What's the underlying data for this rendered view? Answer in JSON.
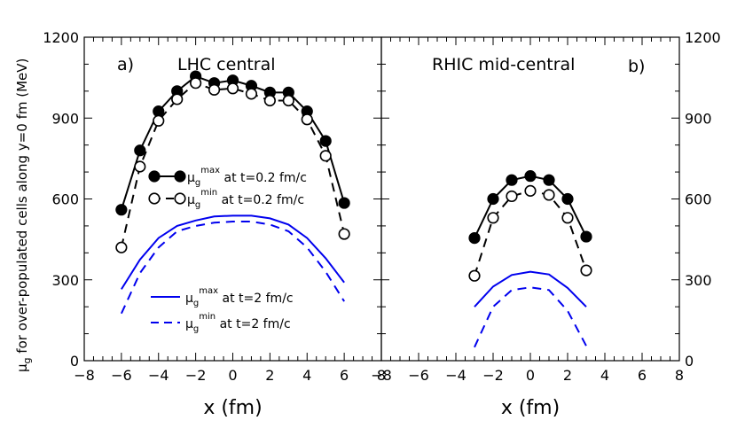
{
  "chart_data": {
    "type": "line",
    "ylabel_prefix": "μ",
    "ylabel_sub": "g",
    "ylabel_rest": " for over-populated cells along y=0 fm (MeV)",
    "ylim": [
      0,
      1200
    ],
    "yticks": [
      0,
      300,
      600,
      900,
      1200
    ],
    "xticks": [
      -8,
      -6,
      -4,
      -2,
      0,
      2,
      4,
      6,
      8
    ],
    "legend": [
      {
        "series": "LHC max t=0.2",
        "mu": "μ",
        "sub": "g",
        "sup": "max",
        "text": "at t=0.2 fm/c"
      },
      {
        "series": "LHC min t=0.2",
        "mu": "μ",
        "sub": "g",
        "sup": "min",
        "text": "at t=0.2 fm/c"
      },
      {
        "series": "LHC max t=2",
        "mu": "μ",
        "sub": "g",
        "sup": "max",
        "text": "at t=2 fm/c"
      },
      {
        "series": "LHC min t=2",
        "mu": "μ",
        "sub": "g",
        "sup": "min",
        "text": "at t=2 fm/c"
      }
    ],
    "panels": [
      {
        "id": "left",
        "tag": "a)",
        "title": "LHC central",
        "xlabel": "x (fm)",
        "xlim": [
          -8,
          8
        ],
        "series": [
          {
            "name": "LHC max t=0.2",
            "style": "solid",
            "color": "#000000",
            "marker": "filled",
            "x": [
              -6,
              -5,
              -4,
              -3,
              -2,
              -1,
              0,
              1,
              2,
              3,
              4,
              5,
              6
            ],
            "y": [
              560,
              780,
              925,
              1000,
              1055,
              1030,
              1040,
              1020,
              995,
              995,
              925,
              815,
              585
            ]
          },
          {
            "name": "LHC min t=0.2",
            "style": "dashed",
            "color": "#000000",
            "marker": "open",
            "x": [
              -6,
              -5,
              -4,
              -3,
              -2,
              -1,
              0,
              1,
              2,
              3,
              4,
              5,
              6
            ],
            "y": [
              420,
              720,
              890,
              970,
              1030,
              1005,
              1010,
              990,
              965,
              965,
              895,
              760,
              470
            ]
          },
          {
            "name": "LHC max t=2",
            "style": "solid",
            "color": "#0000ee",
            "marker": "none",
            "x": [
              -6,
              -5,
              -4,
              -3,
              -2,
              -1,
              0,
              1,
              2,
              3,
              4,
              5,
              6
            ],
            "y": [
              265,
              375,
              455,
              500,
              520,
              535,
              538,
              538,
              528,
              505,
              455,
              380,
              290
            ]
          },
          {
            "name": "LHC min t=2",
            "style": "dashed",
            "color": "#0000ee",
            "marker": "none",
            "x": [
              -6,
              -5,
              -4,
              -3,
              -2,
              -1,
              0,
              1,
              2,
              3,
              4,
              5,
              6
            ],
            "y": [
              175,
              325,
              420,
              480,
              500,
              512,
              516,
              516,
              505,
              480,
              420,
              330,
              220
            ]
          }
        ]
      },
      {
        "id": "right",
        "tag": "b)",
        "title": "RHIC mid-central",
        "xlabel": "x (fm)",
        "xlim": [
          -8,
          8
        ],
        "series": [
          {
            "name": "RHIC max t=0.2",
            "style": "solid",
            "color": "#000000",
            "marker": "filled",
            "x": [
              -3,
              -2,
              -1,
              0,
              1,
              2,
              3
            ],
            "y": [
              455,
              600,
              670,
              685,
              670,
              600,
              460
            ]
          },
          {
            "name": "RHIC min t=0.2",
            "style": "dashed",
            "color": "#000000",
            "marker": "open",
            "x": [
              -3,
              -2,
              -1,
              0,
              1,
              2,
              3
            ],
            "y": [
              315,
              530,
              610,
              630,
              615,
              530,
              335
            ]
          },
          {
            "name": "RHIC max t=2",
            "style": "solid",
            "color": "#0000ee",
            "marker": "none",
            "x": [
              -3,
              -2,
              -1,
              0,
              1,
              2,
              3
            ],
            "y": [
              200,
              275,
              318,
              330,
              320,
              270,
              200
            ]
          },
          {
            "name": "RHIC min t=2",
            "style": "dashed",
            "color": "#0000ee",
            "marker": "none",
            "x": [
              -3,
              -2,
              -1,
              0,
              1,
              2,
              3
            ],
            "y": [
              50,
              200,
              262,
              272,
              262,
              185,
              55
            ]
          }
        ]
      }
    ]
  }
}
